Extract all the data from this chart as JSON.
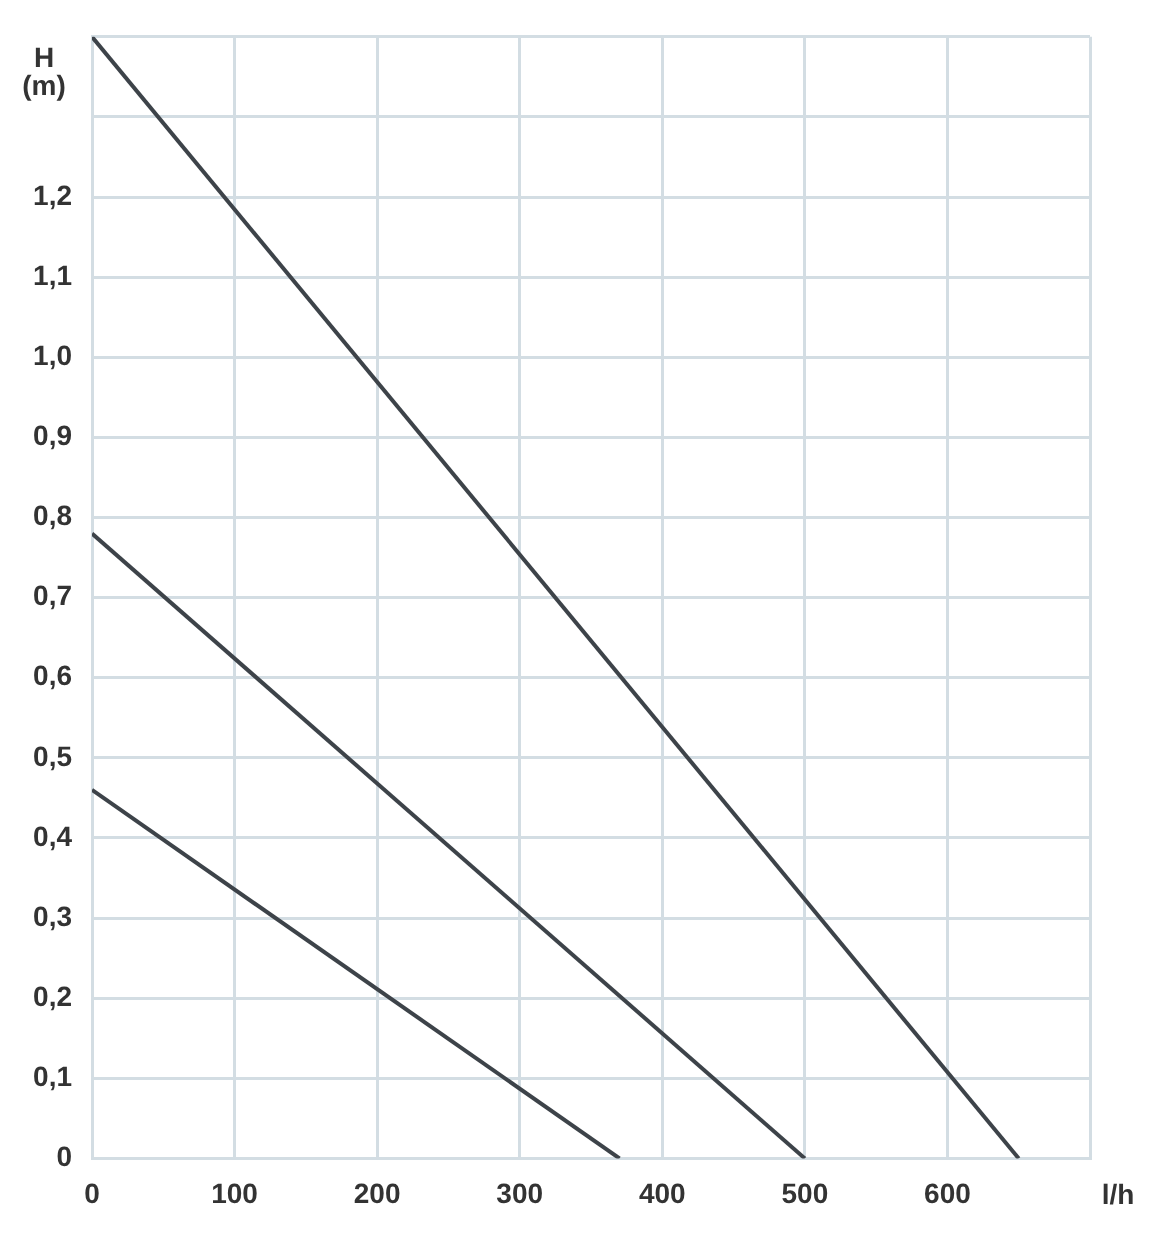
{
  "chart_data": {
    "type": "line",
    "xlabel": "l/h",
    "ylabel": "H (m)",
    "xlim": [
      0,
      700
    ],
    "xticks": [
      0,
      100,
      200,
      300,
      400,
      500,
      600,
      {
        "value": 700,
        "label": null
      }
    ],
    "ylim": [
      0,
      1.4
    ],
    "yticks": [
      0,
      {
        "value": 0.1,
        "label": "0,1"
      },
      {
        "value": 0.2,
        "label": "0,2"
      },
      {
        "value": 0.3,
        "label": "0,3"
      },
      {
        "value": 0.4,
        "label": "0,4"
      },
      {
        "value": 0.5,
        "label": "0,5"
      },
      {
        "value": 0.6,
        "label": "0,6"
      },
      {
        "value": 0.7,
        "label": "0,7"
      },
      {
        "value": 0.8,
        "label": "0,8"
      },
      {
        "value": 0.9,
        "label": "0,9"
      },
      {
        "value": 1.0,
        "label": "1,0"
      },
      {
        "value": 1.1,
        "label": "1,1"
      },
      {
        "value": 1.2,
        "label": "1,2"
      },
      {
        "value": 1.3,
        "label": null
      },
      {
        "value": 1.4,
        "label": null
      }
    ],
    "grid": true,
    "legend": false,
    "marker": "none",
    "line_style": "solid",
    "series": [
      {
        "color": "#3d4349",
        "x": [
          0,
          650
        ],
        "values": [
          1.4,
          0
        ]
      },
      {
        "color": "#3d4349",
        "x": [
          0,
          500
        ],
        "values": [
          0.78,
          0
        ]
      },
      {
        "color": "#3d4349",
        "x": [
          0,
          370
        ],
        "values": [
          0.46,
          0
        ]
      }
    ]
  }
}
